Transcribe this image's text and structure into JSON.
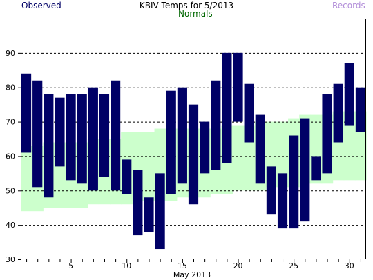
{
  "chart_data": {
    "type": "bar",
    "title": "KBIV Temps for 5/2013",
    "xlabel": "May 2013",
    "ylabel": "",
    "legend": [
      {
        "name": "Observed",
        "color": "#000066"
      },
      {
        "name": "Normals",
        "color": "#006600"
      },
      {
        "name": "Records",
        "color": "#b38fd9"
      }
    ],
    "xlim": [
      0.5,
      31.5
    ],
    "ylim": [
      30,
      100
    ],
    "x_ticks": [
      5,
      10,
      15,
      20,
      25,
      30
    ],
    "y_ticks": [
      30,
      40,
      50,
      60,
      70,
      80,
      90
    ],
    "grid_y": [
      40,
      50,
      60,
      70,
      80,
      90
    ],
    "series": [
      {
        "name": "Normals",
        "color": "#ccffcc",
        "x": [
          1,
          2,
          3,
          4,
          5,
          6,
          7,
          8,
          9,
          10,
          11,
          12,
          13,
          14,
          15,
          16,
          17,
          18,
          19,
          20,
          21,
          22,
          23,
          24,
          25,
          26,
          27,
          28,
          29,
          30,
          31
        ],
        "low": [
          44,
          44,
          45,
          45,
          45,
          45,
          46,
          46,
          46,
          46,
          47,
          47,
          47,
          47,
          48,
          48,
          48,
          49,
          49,
          50,
          50,
          50,
          51,
          51,
          51,
          52,
          52,
          52,
          53,
          53,
          53
        ],
        "high": [
          63,
          63,
          64,
          64,
          64,
          64,
          65,
          65,
          65,
          67,
          67,
          67,
          68,
          68,
          68,
          68,
          68,
          68,
          69,
          69,
          69,
          70,
          70,
          70,
          71,
          72,
          72,
          72,
          73,
          73,
          73
        ]
      },
      {
        "name": "Observed",
        "color": "#000066",
        "x": [
          1,
          2,
          3,
          4,
          5,
          6,
          7,
          8,
          9,
          10,
          11,
          12,
          13,
          14,
          15,
          16,
          17,
          18,
          19,
          20,
          21,
          22,
          23,
          24,
          25,
          26,
          27,
          28,
          29,
          30,
          31
        ],
        "low": [
          61,
          51,
          48,
          57,
          53,
          52,
          50,
          54,
          50,
          49,
          37,
          38,
          33,
          49,
          52,
          46,
          55,
          56,
          58,
          70,
          64,
          52,
          43,
          39,
          39,
          41,
          53,
          55,
          64,
          69,
          67
        ],
        "high": [
          84,
          82,
          78,
          77,
          78,
          78,
          80,
          78,
          82,
          59,
          56,
          48,
          55,
          79,
          80,
          75,
          70,
          82,
          90,
          90,
          81,
          72,
          57,
          55,
          66,
          71,
          60,
          78,
          81,
          87,
          80
        ]
      }
    ]
  }
}
